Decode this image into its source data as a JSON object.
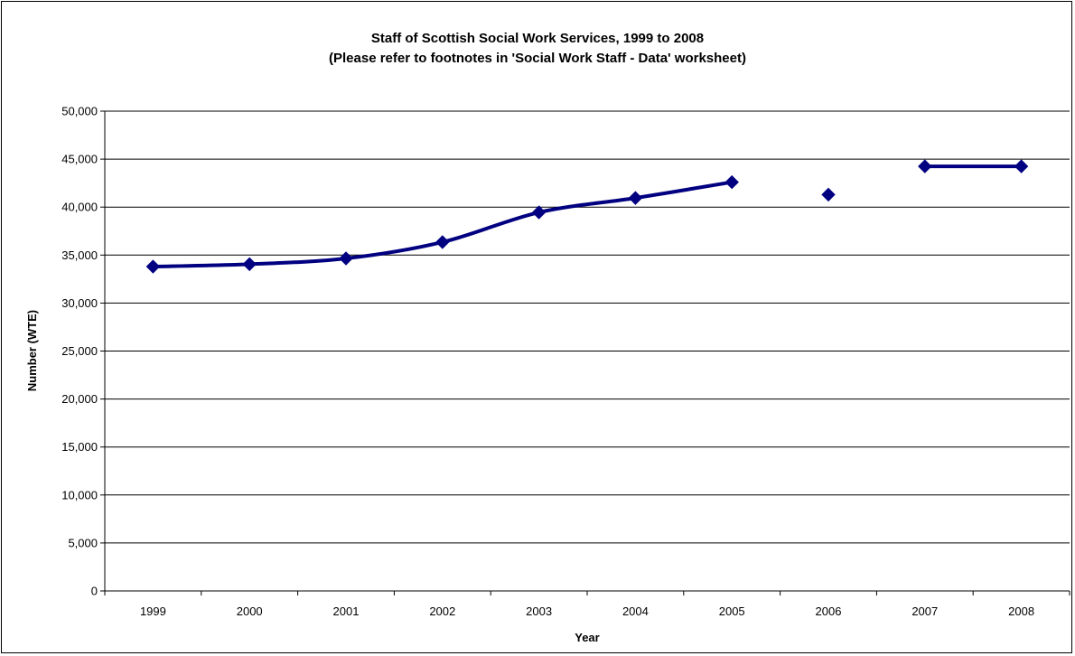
{
  "chart_data": {
    "type": "line",
    "title": "Staff of Scottish Social Work Services, 1999 to 2008",
    "subtitle": "(Please refer to footnotes in 'Social Work Staff - Data' worksheet)",
    "xlabel": "Year",
    "ylabel": "Number (WTE)",
    "categories": [
      "1999",
      "2000",
      "2001",
      "2002",
      "2003",
      "2004",
      "2005",
      "2006",
      "2007",
      "2008"
    ],
    "series": [
      {
        "values": [
          33800,
          34050,
          34650,
          36350,
          39450,
          40950,
          42600,
          41300,
          44250,
          44250
        ],
        "line_segments": [
          [
            0,
            6
          ],
          [
            8,
            9
          ]
        ]
      }
    ],
    "ylim": [
      0,
      50000
    ],
    "yticks": [
      0,
      5000,
      10000,
      15000,
      20000,
      25000,
      30000,
      35000,
      40000,
      45000,
      50000
    ],
    "ytick_labels": [
      "0",
      "5,000",
      "10,000",
      "15,000",
      "20,000",
      "25,000",
      "30,000",
      "35,000",
      "40,000",
      "45,000",
      "50,000"
    ],
    "grid": true,
    "legend": "none",
    "colors": {
      "series": "#000080",
      "grid": "#000000",
      "axis": "#000000",
      "background": "#ffffff"
    }
  }
}
